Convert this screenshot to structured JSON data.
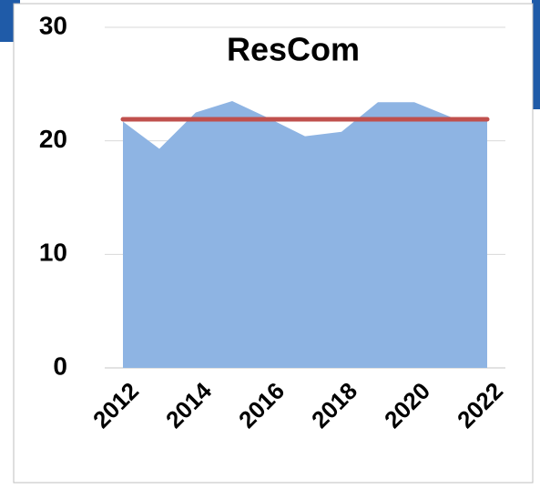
{
  "chart_data": {
    "type": "area",
    "title": "ResCom",
    "categories": [
      "2012",
      null,
      "2014",
      null,
      "2016",
      null,
      "2018",
      null,
      "2020",
      null,
      "2022"
    ],
    "series": [
      {
        "color": "#8eb4e3",
        "values": [
          21.7,
          19.3,
          22.5,
          23.5,
          22.0,
          20.4,
          20.8,
          23.4,
          23.4,
          22.1,
          21.9
        ]
      },
      {
        "color": "#c0504d",
        "type": "line",
        "values": [
          21.9,
          21.9,
          21.9,
          21.9,
          21.9,
          21.9,
          21.9,
          21.9,
          21.9,
          21.9,
          21.9
        ]
      }
    ],
    "ylim": [
      0,
      30
    ],
    "yticks": [
      0,
      10,
      20,
      30
    ],
    "grid": true
  }
}
